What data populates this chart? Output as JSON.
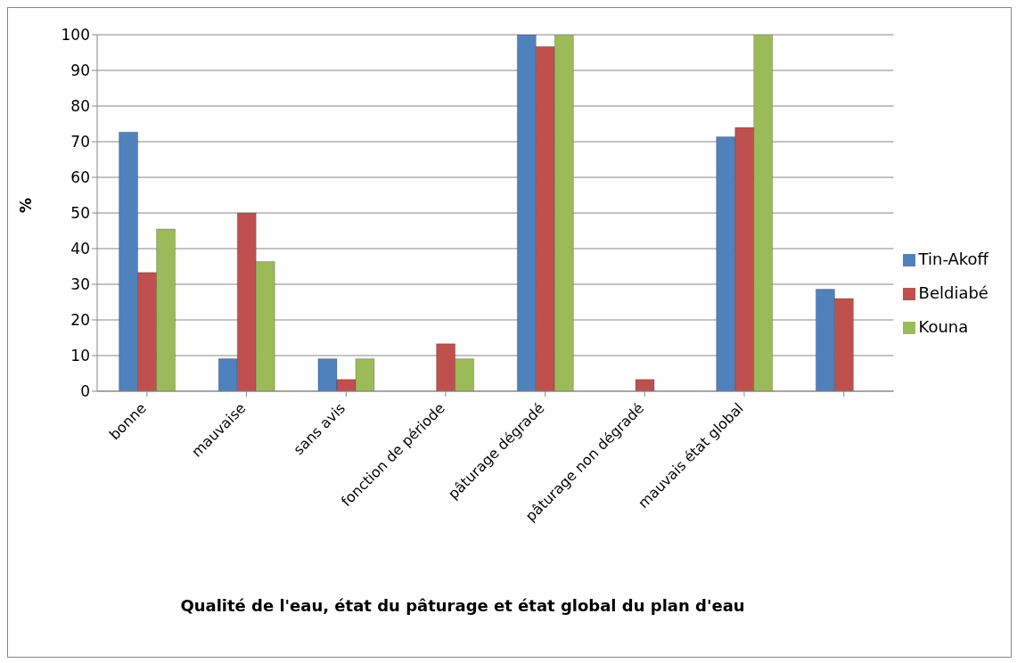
{
  "chart_data": {
    "type": "bar",
    "xlabel": "Qualité de l'eau, état du pâturage et état global du plan d'eau",
    "ylabel": "%",
    "categories": [
      "bonne",
      "mauvaise",
      "sans avis",
      "fonction de période",
      "pâturage dégradé",
      "pâturage non dégradé",
      "mauvais état global",
      null
    ],
    "series": [
      {
        "name": "Tin-Akoff",
        "color": "#4f81bd",
        "values": [
          72.7,
          9.1,
          9.1,
          0,
          100,
          0,
          71.4,
          28.6
        ]
      },
      {
        "name": "Beldiabé",
        "color": "#c0504d",
        "values": [
          33.3,
          50,
          3.3,
          13.3,
          96.7,
          3.3,
          74,
          26
        ]
      },
      {
        "name": "Kouna",
        "color": "#9bbb59",
        "values": [
          45.5,
          36.4,
          9.1,
          9.1,
          100,
          0,
          100,
          0
        ]
      }
    ],
    "ylim": [
      0,
      100
    ],
    "yticks": [
      0,
      10,
      20,
      30,
      40,
      50,
      60,
      70,
      80,
      90,
      100
    ],
    "grid": "y",
    "legend": "right"
  }
}
